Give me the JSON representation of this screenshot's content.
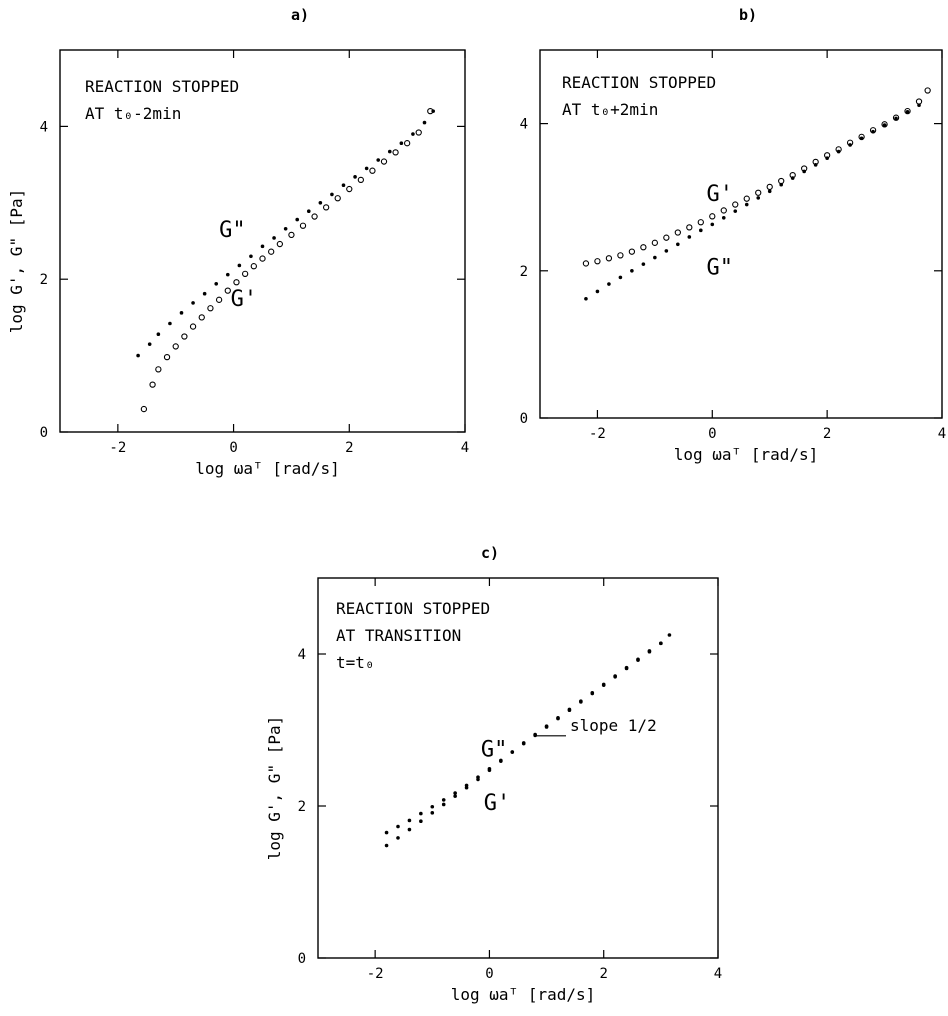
{
  "chart_data": [
    {
      "id": "a",
      "type": "scatter",
      "panel_label": "a)",
      "title": "",
      "annotation_lines": [
        "REACTION STOPPED",
        "AT t₀-2min"
      ],
      "xlabel": "log ωaᵀ   [rad/s]",
      "ylabel": "log G', G\"   [Pa]",
      "xlim": [
        -3,
        4
      ],
      "ylim": [
        0,
        5
      ],
      "xticks": [
        -2,
        0,
        2,
        4
      ],
      "yticks": [
        0,
        2,
        4
      ],
      "curve_labels": [
        {
          "text": "G\"",
          "x": -0.25,
          "y": 2.55
        },
        {
          "text": "G'",
          "x": -0.05,
          "y": 1.65
        }
      ],
      "series": [
        {
          "name": "G\"",
          "marker": "dot",
          "x": [
            -1.65,
            -1.45,
            -1.3,
            -1.1,
            -0.9,
            -0.7,
            -0.5,
            -0.3,
            -0.1,
            0.1,
            0.3,
            0.5,
            0.7,
            0.9,
            1.1,
            1.3,
            1.5,
            1.7,
            1.9,
            2.1,
            2.3,
            2.5,
            2.7,
            2.9,
            3.1,
            3.3,
            3.45
          ],
          "y": [
            1.0,
            1.15,
            1.28,
            1.42,
            1.56,
            1.69,
            1.81,
            1.94,
            2.06,
            2.18,
            2.3,
            2.43,
            2.54,
            2.66,
            2.78,
            2.89,
            3.0,
            3.11,
            3.23,
            3.34,
            3.45,
            3.56,
            3.67,
            3.78,
            3.9,
            4.05,
            4.2
          ]
        },
        {
          "name": "G'",
          "marker": "circle",
          "x": [
            -1.55,
            -1.4,
            -1.3,
            -1.15,
            -1.0,
            -0.85,
            -0.7,
            -0.55,
            -0.4,
            -0.25,
            -0.1,
            0.05,
            0.2,
            0.35,
            0.5,
            0.65,
            0.8,
            1.0,
            1.2,
            1.4,
            1.6,
            1.8,
            2.0,
            2.2,
            2.4,
            2.6,
            2.8,
            3.0,
            3.2,
            3.4
          ],
          "y": [
            0.3,
            0.62,
            0.82,
            0.98,
            1.12,
            1.25,
            1.38,
            1.5,
            1.62,
            1.73,
            1.85,
            1.96,
            2.07,
            2.17,
            2.27,
            2.36,
            2.46,
            2.58,
            2.7,
            2.82,
            2.94,
            3.06,
            3.18,
            3.3,
            3.42,
            3.54,
            3.66,
            3.78,
            3.92,
            4.2
          ]
        }
      ]
    },
    {
      "id": "b",
      "type": "scatter",
      "panel_label": "b)",
      "title": "",
      "annotation_lines": [
        "REACTION STOPPED",
        "AT t₀+2min"
      ],
      "xlabel": "log ωaᵀ   [rad/s]",
      "ylabel": "",
      "xlim": [
        -3,
        4
      ],
      "ylim": [
        0,
        5
      ],
      "xticks": [
        -2,
        0,
        2,
        4
      ],
      "yticks": [
        0,
        2,
        4
      ],
      "curve_labels": [
        {
          "text": "G'",
          "x": -0.1,
          "y": 2.95
        },
        {
          "text": "G\"",
          "x": -0.1,
          "y": 1.95
        }
      ],
      "series": [
        {
          "name": "G'",
          "marker": "circle",
          "x": [
            -2.2,
            -2.0,
            -1.8,
            -1.6,
            -1.4,
            -1.2,
            -1.0,
            -0.8,
            -0.6,
            -0.4,
            -0.2,
            0.0,
            0.2,
            0.4,
            0.6,
            0.8,
            1.0,
            1.2,
            1.4,
            1.6,
            1.8,
            2.0,
            2.2,
            2.4,
            2.6,
            2.8,
            3.0,
            3.2,
            3.4,
            3.6,
            3.75
          ],
          "y": [
            2.1,
            2.13,
            2.17,
            2.21,
            2.26,
            2.32,
            2.38,
            2.45,
            2.52,
            2.59,
            2.66,
            2.74,
            2.82,
            2.9,
            2.98,
            3.06,
            3.14,
            3.22,
            3.3,
            3.39,
            3.48,
            3.57,
            3.65,
            3.74,
            3.82,
            3.91,
            3.99,
            4.08,
            4.17,
            4.3,
            4.45
          ]
        },
        {
          "name": "G\"",
          "marker": "dot",
          "x": [
            -2.2,
            -2.0,
            -1.8,
            -1.6,
            -1.4,
            -1.2,
            -1.0,
            -0.8,
            -0.6,
            -0.4,
            -0.2,
            0.0,
            0.2,
            0.4,
            0.6,
            0.8,
            1.0,
            1.2,
            1.4,
            1.6,
            1.8,
            2.0,
            2.2,
            2.4,
            2.6,
            2.8,
            3.0,
            3.2,
            3.4,
            3.6
          ],
          "y": [
            1.62,
            1.72,
            1.82,
            1.91,
            2.0,
            2.09,
            2.18,
            2.27,
            2.36,
            2.46,
            2.55,
            2.63,
            2.72,
            2.81,
            2.9,
            2.99,
            3.08,
            3.17,
            3.26,
            3.35,
            3.44,
            3.53,
            3.62,
            3.71,
            3.8,
            3.89,
            3.98,
            4.07,
            4.16,
            4.25
          ]
        }
      ]
    },
    {
      "id": "c",
      "type": "scatter",
      "panel_label": "c)",
      "title": "",
      "annotation_lines": [
        "REACTION STOPPED",
        "AT TRANSITION",
        "t=t₀"
      ],
      "xlabel": "log ωaᵀ   [rad/s]",
      "ylabel": "log G', G\"   [Pa]",
      "xlim": [
        -3,
        4
      ],
      "ylim": [
        0,
        5
      ],
      "xticks": [
        -2,
        0,
        2,
        4
      ],
      "yticks": [
        0,
        2,
        4
      ],
      "curve_labels": [
        {
          "text": "G\"",
          "x": -0.15,
          "y": 2.65
        },
        {
          "text": "G'",
          "x": -0.1,
          "y": 1.95
        }
      ],
      "slope_annotation": {
        "text": "slope 1/2",
        "x": 0.85,
        "y": 2.95,
        "line_to": [
          1.35,
          2.85
        ]
      },
      "series": [
        {
          "name": "G\"",
          "marker": "dot",
          "x": [
            -1.8,
            -1.6,
            -1.4,
            -1.2,
            -1.0,
            -0.8,
            -0.6,
            -0.4,
            -0.2,
            0.0,
            0.2,
            0.4,
            0.6,
            0.8,
            1.0,
            1.2,
            1.4,
            1.6,
            1.8,
            2.0,
            2.2,
            2.4,
            2.6,
            2.8,
            3.0,
            3.15
          ],
          "y": [
            1.65,
            1.73,
            1.81,
            1.9,
            1.99,
            2.08,
            2.17,
            2.27,
            2.38,
            2.49,
            2.6,
            2.71,
            2.82,
            2.93,
            3.04,
            3.15,
            3.26,
            3.37,
            3.48,
            3.59,
            3.7,
            3.81,
            3.92,
            4.03,
            4.14,
            4.25
          ]
        },
        {
          "name": "G'",
          "marker": "dot",
          "x": [
            -1.8,
            -1.6,
            -1.4,
            -1.2,
            -1.0,
            -0.8,
            -0.6,
            -0.4,
            -0.2,
            0.0,
            0.2,
            0.4,
            0.6,
            0.8,
            1.0,
            1.2,
            1.4,
            1.6,
            1.8,
            2.0,
            2.2,
            2.4,
            2.6,
            2.8,
            3.0
          ],
          "y": [
            1.48,
            1.58,
            1.69,
            1.8,
            1.91,
            2.02,
            2.13,
            2.24,
            2.35,
            2.47,
            2.59,
            2.71,
            2.83,
            2.94,
            3.05,
            3.16,
            3.27,
            3.38,
            3.49,
            3.6,
            3.71,
            3.82,
            3.93,
            4.04,
            4.14
          ]
        }
      ]
    }
  ]
}
